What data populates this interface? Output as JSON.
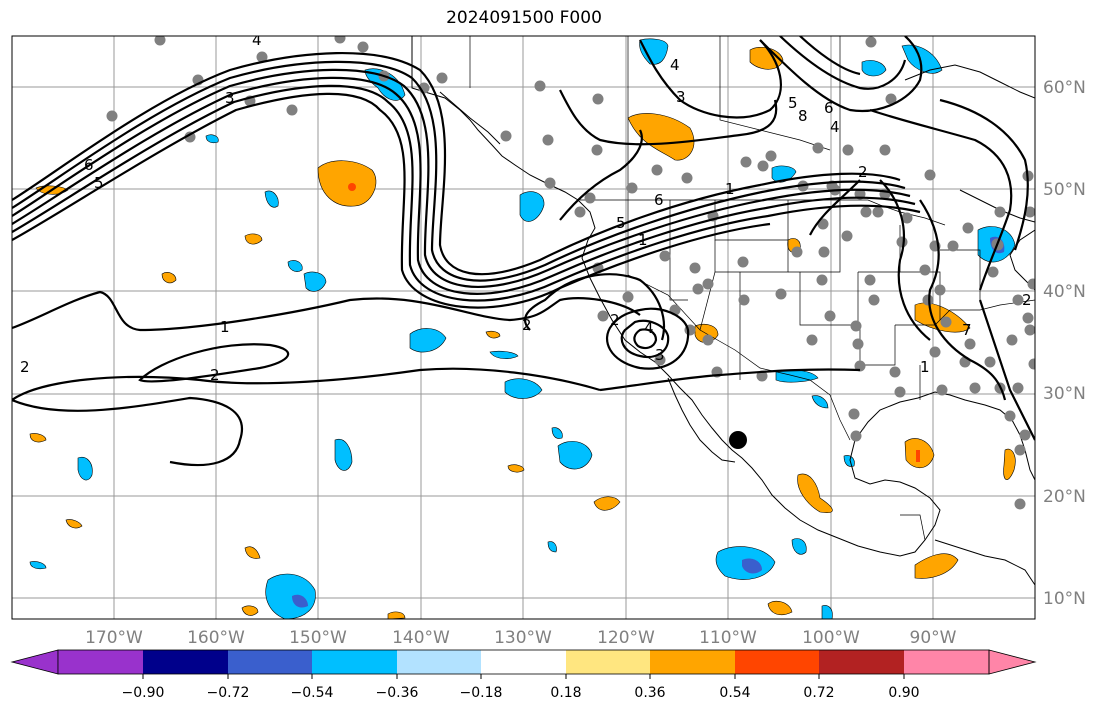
{
  "title": "2024091500 F000",
  "lon_ticks": [
    "170°W",
    "160°W",
    "150°W",
    "140°W",
    "130°W",
    "120°W",
    "110°W",
    "100°W",
    "90°W"
  ],
  "lat_ticks": [
    "60°N",
    "50°N",
    "40°N",
    "30°N",
    "20°N",
    "10°N"
  ],
  "colorbar": {
    "tick_labels": [
      "−0.90",
      "−0.72",
      "−0.54",
      "−0.36",
      "−0.18",
      "0.18",
      "0.36",
      "0.54",
      "0.72",
      "0.90"
    ],
    "colors": [
      "#9932cc",
      "#00008b",
      "#3a5fcd",
      "#00bfff",
      "#b2e2ff",
      "#ffffff",
      "#ffe680",
      "#ffa500",
      "#ff4500",
      "#b22222",
      "#ff85a8"
    ]
  },
  "contour_labels": [
    "4",
    "3",
    "6",
    "5",
    "1",
    "2",
    "2",
    "1",
    "2",
    "4",
    "3",
    "2",
    "5",
    "6",
    "1",
    "4",
    "3",
    "6",
    "5",
    "8",
    "4",
    "2",
    "1",
    "2",
    "7"
  ],
  "marker_colors": {
    "station": "#808080",
    "highlight": "#000000"
  }
}
